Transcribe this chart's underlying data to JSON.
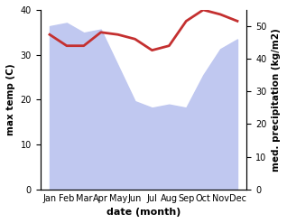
{
  "months": [
    "Jan",
    "Feb",
    "Mar",
    "Apr",
    "May",
    "Jun",
    "Jul",
    "Aug",
    "Sep",
    "Oct",
    "Nov",
    "Dec"
  ],
  "precipitation": [
    50,
    51,
    48,
    49,
    38,
    27,
    25,
    26,
    25,
    35,
    43,
    46
  ],
  "max_temp": [
    34.5,
    32.0,
    32.0,
    35.0,
    34.5,
    33.5,
    31.0,
    32.0,
    37.5,
    40.0,
    39.0,
    37.5
  ],
  "temp_color": "#c43030",
  "fill_color": "#c0c8f0",
  "left_ylim": [
    0,
    40
  ],
  "right_ylim": [
    0,
    55
  ],
  "left_yticks": [
    0,
    10,
    20,
    30,
    40
  ],
  "right_yticks": [
    0,
    10,
    20,
    30,
    40,
    50
  ],
  "ylabel_left": "max temp (C)",
  "ylabel_right": "med. precipitation (kg/m2)",
  "xlabel": "date (month)",
  "figsize": [
    3.18,
    2.47
  ],
  "dpi": 100
}
